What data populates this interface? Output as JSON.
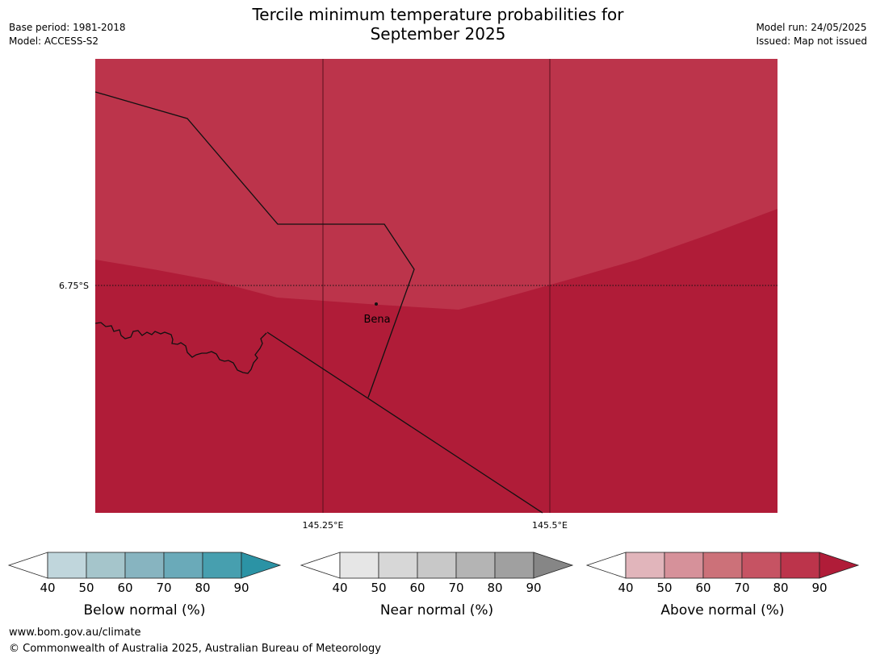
{
  "title": {
    "line1": "Tercile minimum temperature probabilities for",
    "line2": "September 2025"
  },
  "meta": {
    "base_period": "Base period: 1981-2018",
    "model": "Model: ACCESS-S2",
    "model_run": "Model run: 24/05/2025",
    "issued": "Issued: Map not issued"
  },
  "map": {
    "lat_label": "6.75°S",
    "lon_labels": [
      "145.25°E",
      "145.5°E"
    ],
    "place_label": "Bena",
    "fill_colors": {
      "above_70_80": "#bc344b",
      "above_80_90": "#b01c38",
      "border": "#111111"
    }
  },
  "legends": [
    {
      "title": "Below normal (%)",
      "ticks": [
        "40",
        "50",
        "60",
        "70",
        "80",
        "90"
      ],
      "colors": [
        "#ffffff",
        "#c0d6dc",
        "#a5c5cb",
        "#87b4c0",
        "#6aaab9",
        "#479faf",
        "#2b93a5"
      ]
    },
    {
      "title": "Near normal (%)",
      "ticks": [
        "40",
        "50",
        "60",
        "70",
        "80",
        "90"
      ],
      "colors": [
        "#ffffff",
        "#e6e6e6",
        "#d7d7d7",
        "#c8c8c8",
        "#b4b4b4",
        "#a0a0a0",
        "#868686"
      ]
    },
    {
      "title": "Above normal (%)",
      "ticks": [
        "40",
        "50",
        "60",
        "70",
        "80",
        "90"
      ],
      "colors": [
        "#ffffff",
        "#e1b5bb",
        "#d6919a",
        "#cc7179",
        "#c65363",
        "#bc344b",
        "#b01c38"
      ]
    }
  ],
  "footer": {
    "url": "www.bom.gov.au/climate",
    "copyright": "© Commonwealth of Australia 2025, Australian Bureau of Meteorology"
  }
}
